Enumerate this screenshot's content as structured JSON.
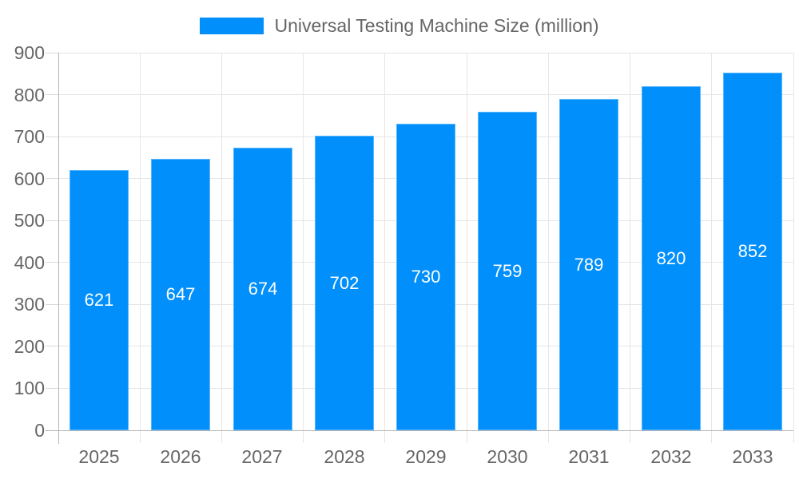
{
  "legend": {
    "label": "Universal Testing Machine Size (million)"
  },
  "chart_data": {
    "type": "bar",
    "title": "Universal Testing Machine Size (million)",
    "categories": [
      "2025",
      "2026",
      "2027",
      "2028",
      "2029",
      "2030",
      "2031",
      "2032",
      "2033"
    ],
    "series": [
      {
        "name": "Universal Testing Machine Size (million)",
        "values": [
          621,
          647,
          674,
          702,
          730,
          759,
          789,
          820,
          852
        ]
      }
    ],
    "bar_value_labels": [
      "621",
      "647",
      "674",
      "702",
      "730",
      "759",
      "789",
      "820",
      "852"
    ],
    "xlabel": "",
    "ylabel": "",
    "ylim": [
      0,
      900
    ],
    "ytick_interval": 100,
    "yticks": [
      "0",
      "100",
      "200",
      "300",
      "400",
      "500",
      "600",
      "700",
      "800",
      "900"
    ],
    "grid": true,
    "legend_position": "top-center",
    "colors": {
      "bar": "#008FFB",
      "bar_value_text": "#ffffff",
      "axis_text": "#666666",
      "grid_line": "#e6e6e6",
      "tick_line": "#d9d9d9",
      "axis_line": "#b3b3b3",
      "background": "#ffffff"
    }
  }
}
